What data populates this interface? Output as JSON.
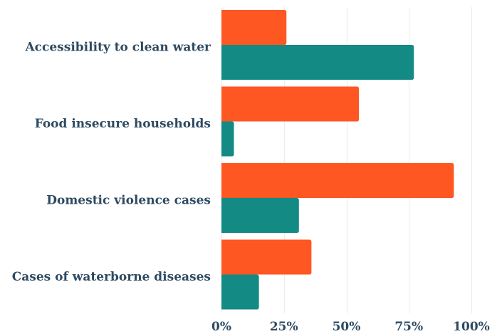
{
  "chart_data": {
    "type": "bar",
    "orientation": "horizontal",
    "categories": [
      "Accessibility to clean water",
      "Food insecure households",
      "Domestic violence cases",
      "Cases of waterborne diseases"
    ],
    "series": [
      {
        "values": [
          26,
          55,
          93,
          36
        ],
        "color": "#ff5722"
      },
      {
        "values": [
          77,
          5,
          31,
          15
        ],
        "color": "#148a84"
      }
    ],
    "xlim": [
      0,
      100
    ],
    "x_ticks": [
      0,
      25,
      50,
      75,
      100
    ],
    "x_tick_labels": [
      "0%",
      "25%",
      "50%",
      "75%",
      "100%"
    ],
    "grid": true,
    "legend": "none",
    "title": "",
    "xlabel": "",
    "ylabel": ""
  }
}
